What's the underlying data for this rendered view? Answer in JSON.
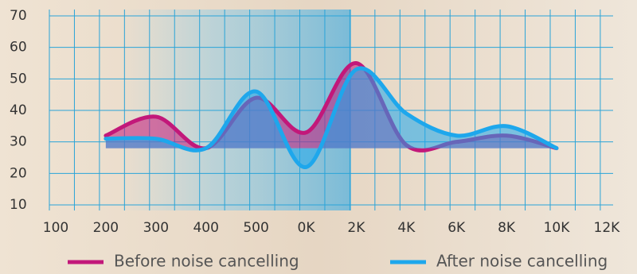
{
  "chart_data": {
    "type": "line",
    "categories": [
      "100",
      "200",
      "300",
      "400",
      "500",
      "0K",
      "2K",
      "4K",
      "6K",
      "8K",
      "10K",
      "12K"
    ],
    "series": [
      {
        "name": "Before noise cancelling",
        "color": "#c2187a",
        "values": [
          null,
          32,
          38,
          28,
          44,
          33,
          55,
          29,
          30,
          32,
          28,
          null
        ]
      },
      {
        "name": "After noise cancelling",
        "color": "#1ea7ec",
        "values": [
          null,
          31,
          31,
          28,
          46,
          22,
          53,
          39,
          32,
          35,
          28,
          null
        ]
      }
    ],
    "ylim": [
      10,
      70
    ],
    "yticks": [
      10,
      20,
      30,
      40,
      50,
      60,
      70
    ],
    "grid": true
  }
}
